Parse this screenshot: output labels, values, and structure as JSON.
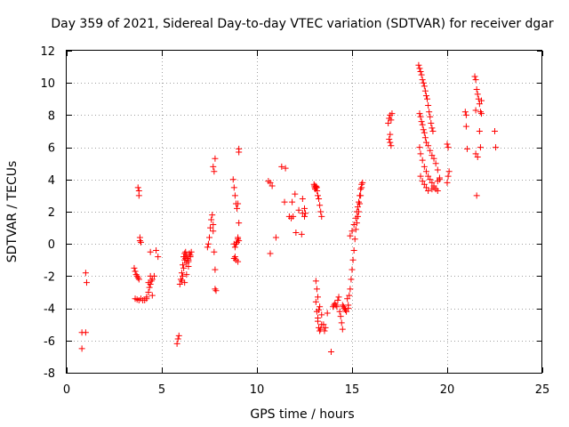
{
  "chart_data": {
    "type": "scatter",
    "title": "Day 359 of 2021, Sidereal Day-to-day VTEC variation (SDTVAR) for receiver dgar",
    "xlabel": "GPS time / hours",
    "ylabel": "SDTVAR / TECUs",
    "xlim": [
      0,
      25
    ],
    "ylim": [
      -8,
      12
    ],
    "xticks": [
      "0",
      "5",
      "10",
      "15",
      "20",
      "25"
    ],
    "yticks": [
      "-8",
      "-6",
      "-4",
      "-2",
      "0",
      "2",
      "4",
      "6",
      "8",
      "10",
      "12"
    ],
    "grid": true,
    "marker": "+",
    "color": "#ff0000",
    "series": [
      {
        "name": "SDTVAR",
        "x": [
          0.8,
          0.8,
          1.0,
          1.0,
          1.05,
          3.55,
          3.6,
          3.65,
          3.7,
          3.75,
          3.8,
          3.6,
          3.7,
          3.8,
          3.9,
          4.0,
          3.75,
          3.8,
          3.8,
          3.85,
          3.85,
          3.9,
          4.1,
          4.2,
          4.3,
          4.35,
          4.4,
          4.45,
          4.5,
          4.4,
          4.3,
          4.2,
          4.5,
          4.6,
          4.4,
          4.7,
          4.8,
          5.8,
          5.85,
          5.9,
          5.95,
          6.0,
          6.05,
          6.1,
          6.15,
          6.2,
          6.25,
          6.3,
          6.35,
          6.4,
          6.45,
          6.5,
          6.05,
          6.1,
          6.15,
          6.2,
          6.25,
          6.3,
          6.4,
          6.5,
          6.55,
          6.2,
          6.3,
          6.4,
          7.4,
          7.45,
          7.5,
          7.55,
          7.6,
          7.65,
          7.7,
          7.7,
          7.75,
          7.8,
          7.8,
          7.85,
          7.7,
          7.8,
          7.75,
          8.75,
          8.8,
          8.85,
          8.9,
          8.95,
          9.0,
          9.05,
          9.0,
          8.95,
          8.9,
          8.85,
          8.8,
          8.8,
          8.85,
          8.9,
          9.0,
          9.05,
          9.0,
          9.05,
          9.05,
          10.6,
          10.7,
          10.8,
          10.7,
          11.0,
          11.3,
          11.5,
          11.45,
          11.7,
          11.8,
          11.85,
          11.9,
          12.0,
          12.05,
          12.2,
          12.35,
          12.4,
          12.5,
          12.4,
          12.5,
          12.55,
          13.0,
          13.02,
          13.04,
          13.06,
          13.08,
          13.1,
          13.12,
          13.14,
          13.16,
          13.2,
          13.25,
          13.3,
          13.35,
          13.4,
          13.1,
          13.15,
          13.2,
          13.25,
          13.3,
          13.35,
          13.4,
          13.2,
          13.25,
          13.1,
          13.15,
          13.2,
          13.3,
          13.4,
          13.5,
          13.55,
          13.6,
          13.7,
          13.9,
          14.0,
          14.05,
          14.1,
          14.15,
          14.2,
          14.25,
          14.3,
          14.35,
          14.4,
          14.45,
          14.5,
          14.5,
          14.55,
          14.6,
          14.65,
          14.7,
          14.75,
          14.8,
          14.8,
          14.85,
          14.9,
          14.95,
          15.0,
          15.05,
          15.1,
          15.15,
          15.2,
          15.25,
          15.3,
          15.35,
          15.4,
          15.45,
          15.5,
          15.55,
          14.9,
          15.0,
          15.1,
          15.2,
          15.25,
          15.3,
          15.35,
          15.4,
          15.45,
          15.5,
          16.9,
          16.95,
          17.0,
          17.05,
          17.1,
          16.95,
          17.0,
          17.05,
          17.0,
          18.5,
          18.55,
          18.6,
          18.65,
          18.7,
          18.75,
          18.8,
          18.85,
          18.9,
          18.95,
          19.0,
          19.05,
          19.1,
          19.15,
          19.2,
          19.25,
          18.55,
          18.6,
          18.65,
          18.7,
          18.75,
          18.8,
          18.85,
          18.9,
          19.0,
          19.1,
          19.2,
          19.3,
          19.4,
          18.55,
          18.6,
          18.7,
          18.8,
          18.9,
          19.0,
          19.1,
          19.2,
          19.3,
          19.4,
          19.5,
          19.5,
          19.6,
          18.6,
          18.7,
          18.8,
          18.9,
          19.0,
          19.2,
          19.3,
          19.5,
          19.6,
          20.0,
          20.05,
          20.1,
          20.05,
          20.0,
          20.95,
          21.0,
          21.05,
          21.0,
          21.45,
          21.5,
          21.55,
          21.6,
          21.65,
          21.7,
          21.75,
          21.8,
          21.7,
          21.75,
          21.5,
          21.6,
          21.55,
          21.5,
          21.8,
          22.5,
          22.55
        ],
        "y": [
          -5.5,
          -6.5,
          -5.5,
          -1.8,
          -2.4,
          -1.5,
          -1.7,
          -1.9,
          -2.0,
          -2.1,
          -2.2,
          -3.4,
          -3.45,
          -3.5,
          -3.4,
          -3.5,
          3.5,
          3.3,
          3.0,
          0.4,
          0.2,
          0.1,
          -3.5,
          -3.3,
          -3.0,
          -2.7,
          -2.5,
          -2.3,
          -2.2,
          -2.0,
          -2.4,
          -3.4,
          -3.2,
          -2.0,
          -0.5,
          -0.4,
          -0.8,
          -6.2,
          -5.9,
          -5.7,
          -2.5,
          -2.2,
          -1.8,
          -1.3,
          -0.8,
          -0.6,
          -0.5,
          -0.7,
          -0.9,
          -1.1,
          -0.6,
          -0.7,
          -2.3,
          -2.0,
          -1.5,
          -1.0,
          -0.9,
          -1.2,
          -1.0,
          -0.8,
          -0.5,
          -2.4,
          -1.9,
          -1.4,
          -0.2,
          0.0,
          0.4,
          1.0,
          1.5,
          1.8,
          1.2,
          0.8,
          -0.5,
          -1.6,
          -2.8,
          -2.9,
          4.8,
          5.3,
          4.5,
          4.0,
          3.5,
          3.0,
          2.5,
          2.2,
          2.5,
          1.3,
          0.3,
          0.1,
          0.0,
          -0.2,
          -0.9,
          0.0,
          -0.8,
          -1.0,
          -1.1,
          0.2,
          0.4,
          5.9,
          5.7,
          3.9,
          3.8,
          3.6,
          -0.6,
          0.4,
          4.8,
          4.7,
          2.6,
          1.7,
          1.6,
          2.6,
          1.7,
          3.1,
          0.7,
          2.1,
          0.6,
          2.8,
          2.2,
          1.9,
          1.7,
          1.9,
          3.7,
          3.6,
          3.5,
          3.4,
          3.6,
          3.5,
          3.55,
          3.5,
          3.3,
          3.0,
          2.8,
          2.4,
          2.0,
          1.7,
          -3.6,
          -4.2,
          -4.8,
          -5.2,
          -5.4,
          -5.3,
          -5.0,
          -4.6,
          -4.1,
          -2.3,
          -2.8,
          -3.3,
          -3.9,
          -4.4,
          -5.0,
          -5.4,
          -5.2,
          -4.3,
          -6.7,
          -3.9,
          -3.8,
          -3.7,
          -3.8,
          -3.9,
          -3.5,
          -3.3,
          -4.2,
          -4.5,
          -4.9,
          -5.3,
          -3.8,
          -3.9,
          -4.0,
          -4.1,
          -4.2,
          -3.4,
          -3.8,
          -4.0,
          -3.2,
          -2.8,
          -2.2,
          -1.6,
          -1.0,
          -0.4,
          0.3,
          0.9,
          1.3,
          1.7,
          2.0,
          2.5,
          3.0,
          3.5,
          3.8,
          0.5,
          0.8,
          1.2,
          1.6,
          2.0,
          2.3,
          2.6,
          3.0,
          3.4,
          3.7,
          7.5,
          7.8,
          8.0,
          7.7,
          8.1,
          6.5,
          6.3,
          6.1,
          6.8,
          11.1,
          10.9,
          10.7,
          10.5,
          10.2,
          10.0,
          9.8,
          9.5,
          9.2,
          9.0,
          8.6,
          8.2,
          7.9,
          7.5,
          7.2,
          7.0,
          8.1,
          7.9,
          7.6,
          7.4,
          7.1,
          6.9,
          6.6,
          6.3,
          6.1,
          5.8,
          5.5,
          5.3,
          5.0,
          6.0,
          5.6,
          5.2,
          4.8,
          4.5,
          4.2,
          4.0,
          3.8,
          3.5,
          3.4,
          3.3,
          4.6,
          4.0,
          4.2,
          3.9,
          3.7,
          3.5,
          3.3,
          3.4,
          3.6,
          3.9,
          4.1,
          6.2,
          6.0,
          4.5,
          4.2,
          3.8,
          8.2,
          7.3,
          5.9,
          8.0,
          10.4,
          10.2,
          9.6,
          9.3,
          9.0,
          8.7,
          8.2,
          8.1,
          7.0,
          6.0,
          5.6,
          5.4,
          3.0,
          8.3,
          8.9,
          7.0,
          6.0
        ]
      }
    ]
  }
}
